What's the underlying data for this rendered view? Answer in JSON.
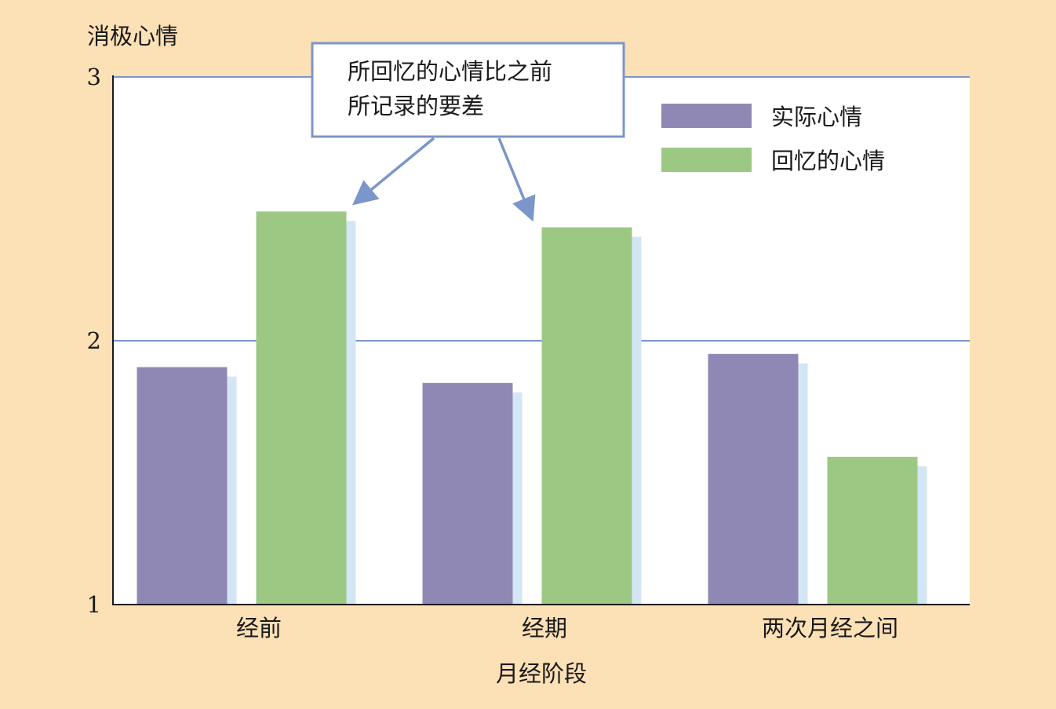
{
  "chart_data": {
    "type": "bar",
    "ylabel": "消极心情",
    "xlabel": "月经阶段",
    "categories": [
      "经前",
      "经期",
      "两次月经之间"
    ],
    "series": [
      {
        "name": "实际心情",
        "values": [
          1.9,
          1.84,
          1.95
        ]
      },
      {
        "name": "回忆的心情",
        "values": [
          2.49,
          2.43,
          1.56
        ]
      }
    ],
    "ylim": [
      1,
      3
    ],
    "yticks": [
      "1",
      "2",
      "3"
    ],
    "grid": true,
    "legend_position": "top-right",
    "annotation": {
      "lines": [
        "所回忆的心情比之前",
        "所记录的要差"
      ],
      "points_to": [
        {
          "category_index": 0,
          "series_index": 1
        },
        {
          "category_index": 1,
          "series_index": 1
        }
      ]
    }
  },
  "colors": {
    "background": "#FCE0B6",
    "plot_background": "#FFFFFF",
    "series": [
      "#9088B4",
      "#9DC884"
    ],
    "bar_shadow": "#D3E6F6",
    "gridline": "#7B96C8",
    "axis": "#1a1a1a",
    "callout_border": "#7B96C8",
    "arrow": "#7B96C8"
  }
}
